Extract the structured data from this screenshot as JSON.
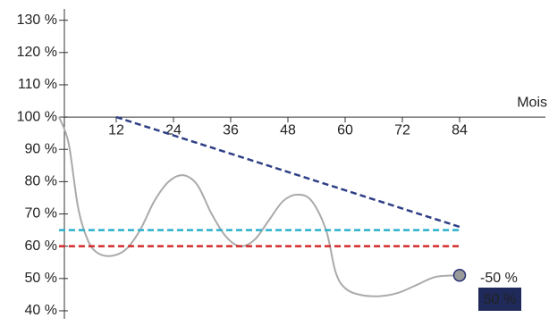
{
  "chart_data": {
    "type": "line",
    "x_label": "Mois",
    "xlim": [
      0,
      102
    ],
    "xticks": [
      12,
      24,
      36,
      48,
      60,
      72,
      84
    ],
    "ylim": [
      37.5,
      133.5
    ],
    "yticks": [
      {
        "value": 40,
        "label": "40 %"
      },
      {
        "value": 50,
        "label": "50 %"
      },
      {
        "value": 60,
        "label": "60 %",
        "color": "#d42b2b"
      },
      {
        "value": 70,
        "label": "70 %"
      },
      {
        "value": 80,
        "label": "80 %"
      },
      {
        "value": 90,
        "label": "90 %"
      },
      {
        "value": 100,
        "label": "100 %"
      },
      {
        "value": 110,
        "label": "110 %"
      },
      {
        "value": 120,
        "label": "120 %"
      },
      {
        "value": 130,
        "label": "130 %"
      }
    ],
    "x_axis_at": 100,
    "series": [
      {
        "color": "#aaaaaa",
        "style": "solid",
        "x": [
          0,
          2,
          4,
          6,
          8,
          11,
          14,
          17,
          20,
          23,
          26,
          29,
          32,
          35,
          38,
          41,
          44,
          47,
          50,
          53,
          56,
          58,
          60,
          63,
          67,
          71,
          75,
          79,
          84
        ],
        "values": [
          100,
          92,
          72,
          62,
          58,
          57,
          59,
          65,
          74,
          80,
          82,
          79,
          70,
          63,
          60,
          62,
          68,
          74,
          76,
          74,
          65,
          52,
          47,
          45,
          44.5,
          45.5,
          48,
          50.5,
          51
        ],
        "end_marker": {
          "fill": "#9a9a9a",
          "stroke": "#2a3275"
        }
      },
      {
        "color": "#2f3f86",
        "style": "dashed",
        "x": [
          12,
          84
        ],
        "values": [
          100,
          66
        ]
      },
      {
        "color": "#2ab0cc",
        "style": "dashed",
        "x": [
          0,
          84
        ],
        "values": [
          65,
          65
        ]
      },
      {
        "color": "#d42b2b",
        "style": "dashed",
        "x": [
          0,
          84
        ],
        "values": [
          60,
          60
        ]
      }
    ],
    "annotations": [
      {
        "text": "-50 %",
        "color": "#aaaaaa"
      },
      {
        "text": "50 %",
        "color": "#ffffff",
        "background": "#1f2a5a"
      }
    ]
  }
}
